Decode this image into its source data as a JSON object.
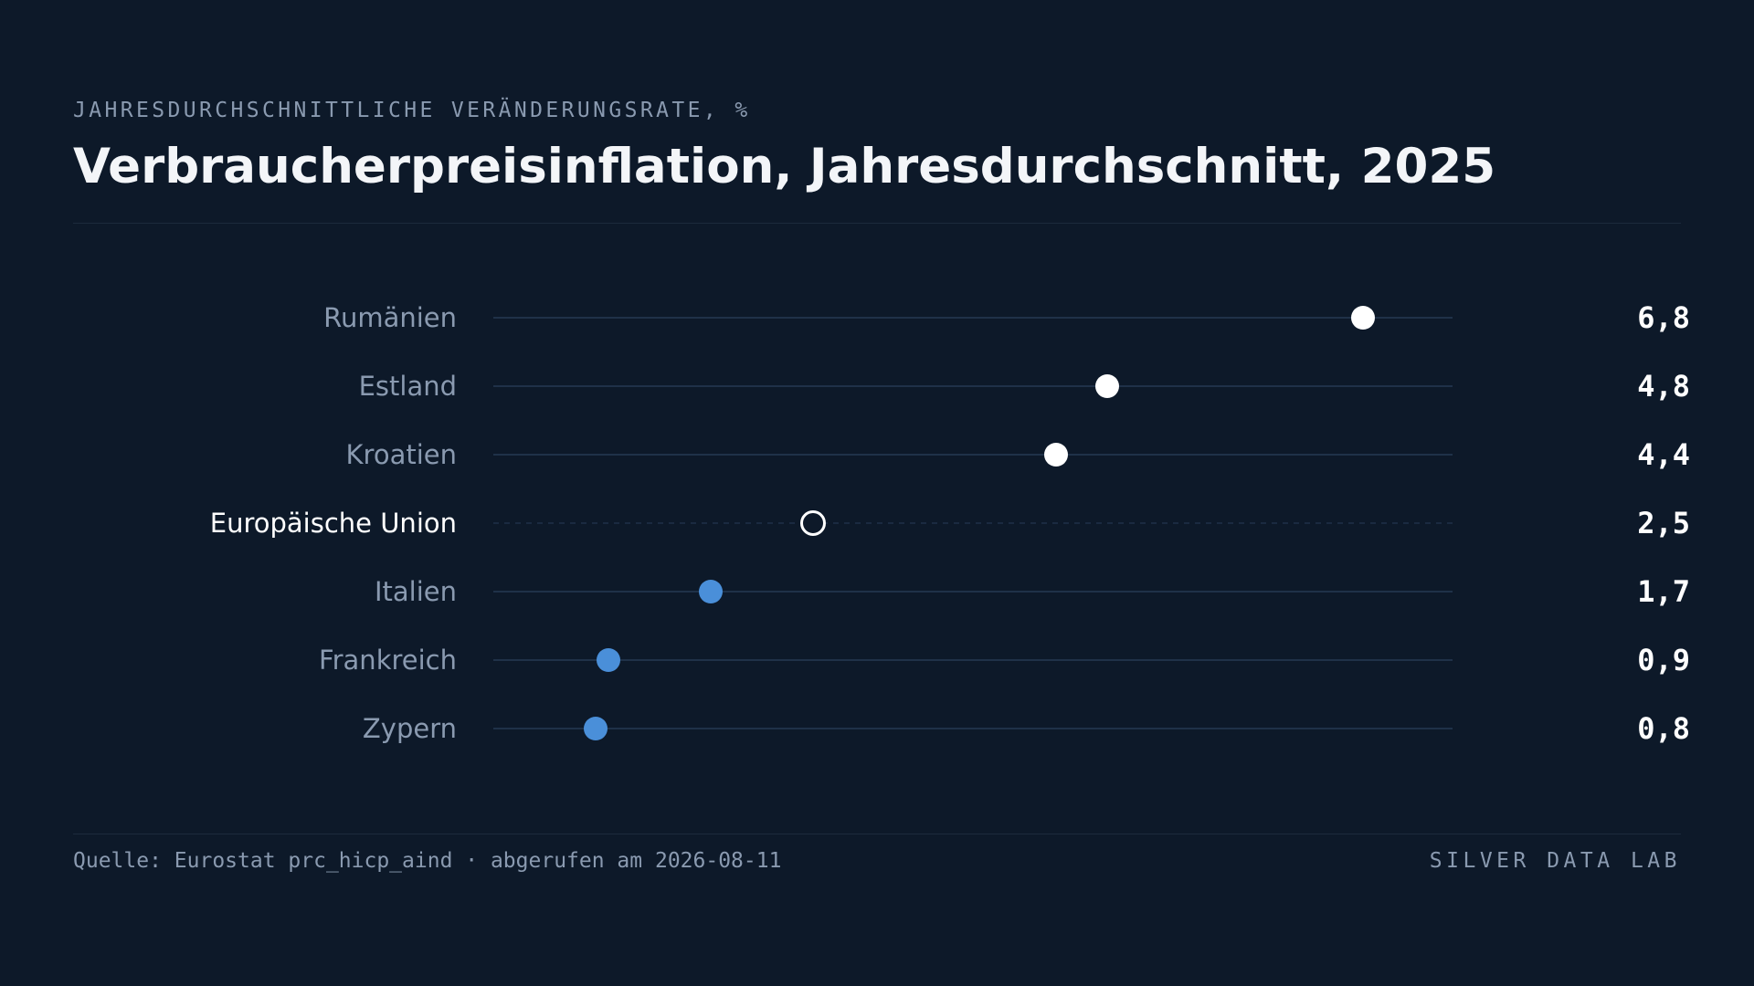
{
  "header": {
    "kicker": "JAHRESDURCHSCHNITTLICHE VERÄNDERUNGSRATE, %",
    "title": "Verbraucherpreisinflation, Jahresdurchschnitt, 2025"
  },
  "footer": {
    "source": "Quelle: Eurostat prc_hicp_aind · abgerufen am 2026-08-11",
    "brand": "SILVER DATA LAB"
  },
  "colors": {
    "background": "#0d1929",
    "above_reference": "#ffffff",
    "below_reference": "#4a8fd9",
    "reference": "#ffffff",
    "track": "#1f3148",
    "label": "#8a9ab0",
    "label_reference": "#ffffff",
    "value": "#ffffff"
  },
  "chart_data": {
    "type": "dot",
    "title": "Verbraucherpreisinflation, Jahresdurchschnitt, 2025",
    "subtitle": "JAHRESDURCHSCHNITTLICHE VERÄNDERUNGSRATE, %",
    "xlim": [
      0,
      7.5
    ],
    "grid": false,
    "legend": "none",
    "reference": "Europäische Union",
    "categories": [
      "Rumänien",
      "Estland",
      "Kroatien",
      "Europäische Union",
      "Italien",
      "Frankreich",
      "Zypern"
    ],
    "values": [
      6.8,
      4.8,
      4.4,
      2.5,
      1.7,
      0.9,
      0.8
    ],
    "value_labels": [
      "6,8",
      "4,8",
      "4,4",
      "2,5",
      "1,7",
      "0,9",
      "0,8"
    ]
  }
}
